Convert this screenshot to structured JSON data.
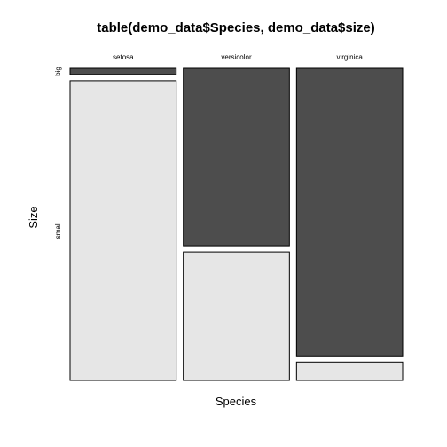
{
  "chart_data": {
    "type": "mosaic",
    "title": "table(demo_data$Species, demo_data$size)",
    "xlabel": "Species",
    "ylabel": "Size",
    "categories": [
      "setosa",
      "versicolor",
      "virginica"
    ],
    "levels": [
      "big",
      "small"
    ],
    "column_widths": [
      1,
      1,
      1
    ],
    "proportions": {
      "setosa": {
        "big": 0.02,
        "small": 0.98
      },
      "versicolor": {
        "big": 0.58,
        "small": 0.42
      },
      "virginica": {
        "big": 0.94,
        "small": 0.06
      }
    },
    "colors": {
      "big": "#4d4d4d",
      "small": "#e6e6e6"
    }
  }
}
